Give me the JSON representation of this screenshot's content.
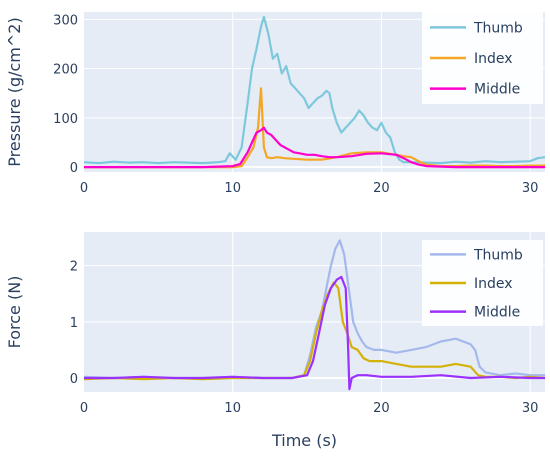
{
  "chart_data": [
    {
      "type": "line",
      "ylabel": "Pressure (g/cm^2)",
      "xlabel": "",
      "xlim": [
        0,
        31
      ],
      "ylim": [
        -10,
        315
      ],
      "xticks": [
        "0",
        "10",
        "20",
        "30"
      ],
      "yticks": [
        "0",
        "100",
        "200",
        "300"
      ],
      "ytick_values": [
        0,
        100,
        200,
        300
      ],
      "grid": true,
      "legend_position": "top-right",
      "series": [
        {
          "name": "Thumb",
          "color": "#7ec8dc",
          "x": [
            0,
            1,
            2,
            3,
            4,
            5,
            6,
            7,
            8,
            9,
            9.5,
            9.8,
            10.2,
            10.6,
            11,
            11.3,
            11.6,
            11.9,
            12.1,
            12.4,
            12.7,
            13,
            13.3,
            13.6,
            13.9,
            14.2,
            14.5,
            14.8,
            15.1,
            15.4,
            15.7,
            16,
            16.3,
            16.5,
            16.7,
            17,
            17.3,
            17.6,
            17.9,
            18.2,
            18.5,
            18.8,
            19.1,
            19.4,
            19.7,
            20,
            20.3,
            20.6,
            20.9,
            21.2,
            21.5,
            22,
            23,
            24,
            25,
            26,
            27,
            28,
            29,
            30,
            30.5,
            31
          ],
          "y": [
            10,
            8,
            11,
            9,
            10,
            8,
            10,
            9,
            8,
            10,
            12,
            28,
            15,
            40,
            130,
            200,
            240,
            285,
            305,
            270,
            220,
            230,
            190,
            205,
            170,
            160,
            150,
            140,
            120,
            130,
            140,
            145,
            155,
            150,
            120,
            90,
            70,
            80,
            90,
            100,
            115,
            105,
            90,
            80,
            75,
            90,
            70,
            60,
            30,
            15,
            10,
            10,
            9,
            8,
            11,
            9,
            12,
            10,
            11,
            12,
            18,
            20
          ]
        },
        {
          "name": "Index",
          "color": "#f5a623",
          "x": [
            0,
            2,
            4,
            6,
            8,
            9,
            10,
            10.6,
            11,
            11.4,
            11.7,
            11.9,
            12.1,
            12.3,
            12.6,
            13,
            13.5,
            14,
            15,
            16,
            17,
            18,
            19,
            20,
            21,
            21.5,
            22,
            22.5,
            23,
            24,
            25,
            26,
            27,
            28,
            29,
            30,
            31
          ],
          "y": [
            0,
            0,
            0,
            0,
            0,
            0,
            0,
            2,
            20,
            40,
            80,
            160,
            40,
            20,
            18,
            20,
            18,
            17,
            15,
            15,
            20,
            28,
            30,
            30,
            25,
            22,
            20,
            12,
            5,
            2,
            2,
            3,
            3,
            2,
            2,
            3,
            3
          ]
        },
        {
          "name": "Middle",
          "color": "#ff00cc",
          "x": [
            0,
            2,
            4,
            6,
            8,
            10,
            10.5,
            11,
            11.3,
            11.6,
            11.9,
            12.1,
            12.3,
            12.6,
            12.9,
            13.2,
            13.5,
            13.8,
            14.1,
            14.5,
            15,
            15.5,
            16,
            16.5,
            17,
            18,
            19,
            20,
            21,
            21.5,
            22,
            22.5,
            23,
            24,
            25,
            26,
            28,
            30,
            31
          ],
          "y": [
            0,
            0,
            0,
            0,
            0,
            2,
            6,
            30,
            50,
            70,
            75,
            80,
            70,
            65,
            55,
            45,
            40,
            35,
            30,
            28,
            25,
            25,
            22,
            20,
            20,
            22,
            27,
            28,
            25,
            18,
            10,
            5,
            2,
            1,
            0,
            0,
            0,
            0,
            0
          ]
        }
      ]
    },
    {
      "type": "line",
      "ylabel": "Force (N)",
      "xlabel": "Time (s)",
      "xlim": [
        0,
        31
      ],
      "ylim": [
        -0.25,
        2.6
      ],
      "xticks": [
        "0",
        "10",
        "20",
        "30"
      ],
      "yticks": [
        "0",
        "1",
        "2"
      ],
      "ytick_values": [
        0,
        1,
        2
      ],
      "grid": true,
      "legend_position": "top-right",
      "series": [
        {
          "name": "Thumb",
          "color": "#a4b8ec",
          "x": [
            0,
            2,
            4,
            6,
            8,
            10,
            12,
            14,
            14.8,
            15.2,
            15.6,
            16,
            16.3,
            16.6,
            16.9,
            17.2,
            17.5,
            17.8,
            18.1,
            18.4,
            18.7,
            19,
            19.5,
            20,
            21,
            22,
            23,
            24,
            25,
            26,
            26.3,
            26.6,
            27,
            28,
            29,
            30,
            31
          ],
          "y": [
            0.02,
            0.0,
            0.02,
            0.0,
            0.0,
            0.02,
            0.0,
            0.0,
            0.05,
            0.4,
            0.9,
            1.2,
            1.6,
            2.0,
            2.3,
            2.45,
            2.2,
            1.6,
            1.0,
            0.8,
            0.65,
            0.55,
            0.5,
            0.5,
            0.45,
            0.5,
            0.55,
            0.65,
            0.7,
            0.6,
            0.5,
            0.2,
            0.1,
            0.05,
            0.08,
            0.05,
            0.05
          ]
        },
        {
          "name": "Index",
          "color": "#d4b106",
          "x": [
            0,
            2,
            4,
            6,
            8,
            10,
            12,
            14,
            14.8,
            15.2,
            15.6,
            16,
            16.4,
            16.8,
            17.1,
            17.4,
            17.7,
            18,
            18.4,
            18.8,
            19.2,
            20,
            21,
            22,
            23,
            24,
            25,
            26,
            26.5,
            27,
            28,
            29,
            30,
            31
          ],
          "y": [
            -0.02,
            0.0,
            -0.02,
            0.0,
            -0.02,
            0.0,
            0.0,
            0.0,
            0.05,
            0.3,
            0.8,
            1.2,
            1.5,
            1.7,
            1.6,
            1.0,
            0.8,
            0.55,
            0.5,
            0.35,
            0.3,
            0.3,
            0.25,
            0.2,
            0.2,
            0.2,
            0.25,
            0.2,
            0.05,
            0.02,
            0.02,
            0.0,
            0.02,
            0.0
          ]
        },
        {
          "name": "Middle",
          "color": "#9b30ff",
          "x": [
            0,
            2,
            4,
            6,
            8,
            10,
            12,
            14,
            15,
            15.4,
            15.8,
            16.2,
            16.6,
            17,
            17.3,
            17.6,
            17.75,
            17.85,
            18,
            18.4,
            19,
            20,
            22,
            24,
            26,
            28,
            30,
            31
          ],
          "y": [
            0.0,
            0.0,
            0.02,
            0.0,
            0.0,
            0.02,
            0.0,
            0.0,
            0.05,
            0.3,
            0.8,
            1.3,
            1.6,
            1.75,
            1.8,
            1.6,
            0.6,
            -0.2,
            0.0,
            0.05,
            0.05,
            0.02,
            0.02,
            0.05,
            0.0,
            0.02,
            0.0,
            0.0
          ]
        }
      ]
    }
  ]
}
